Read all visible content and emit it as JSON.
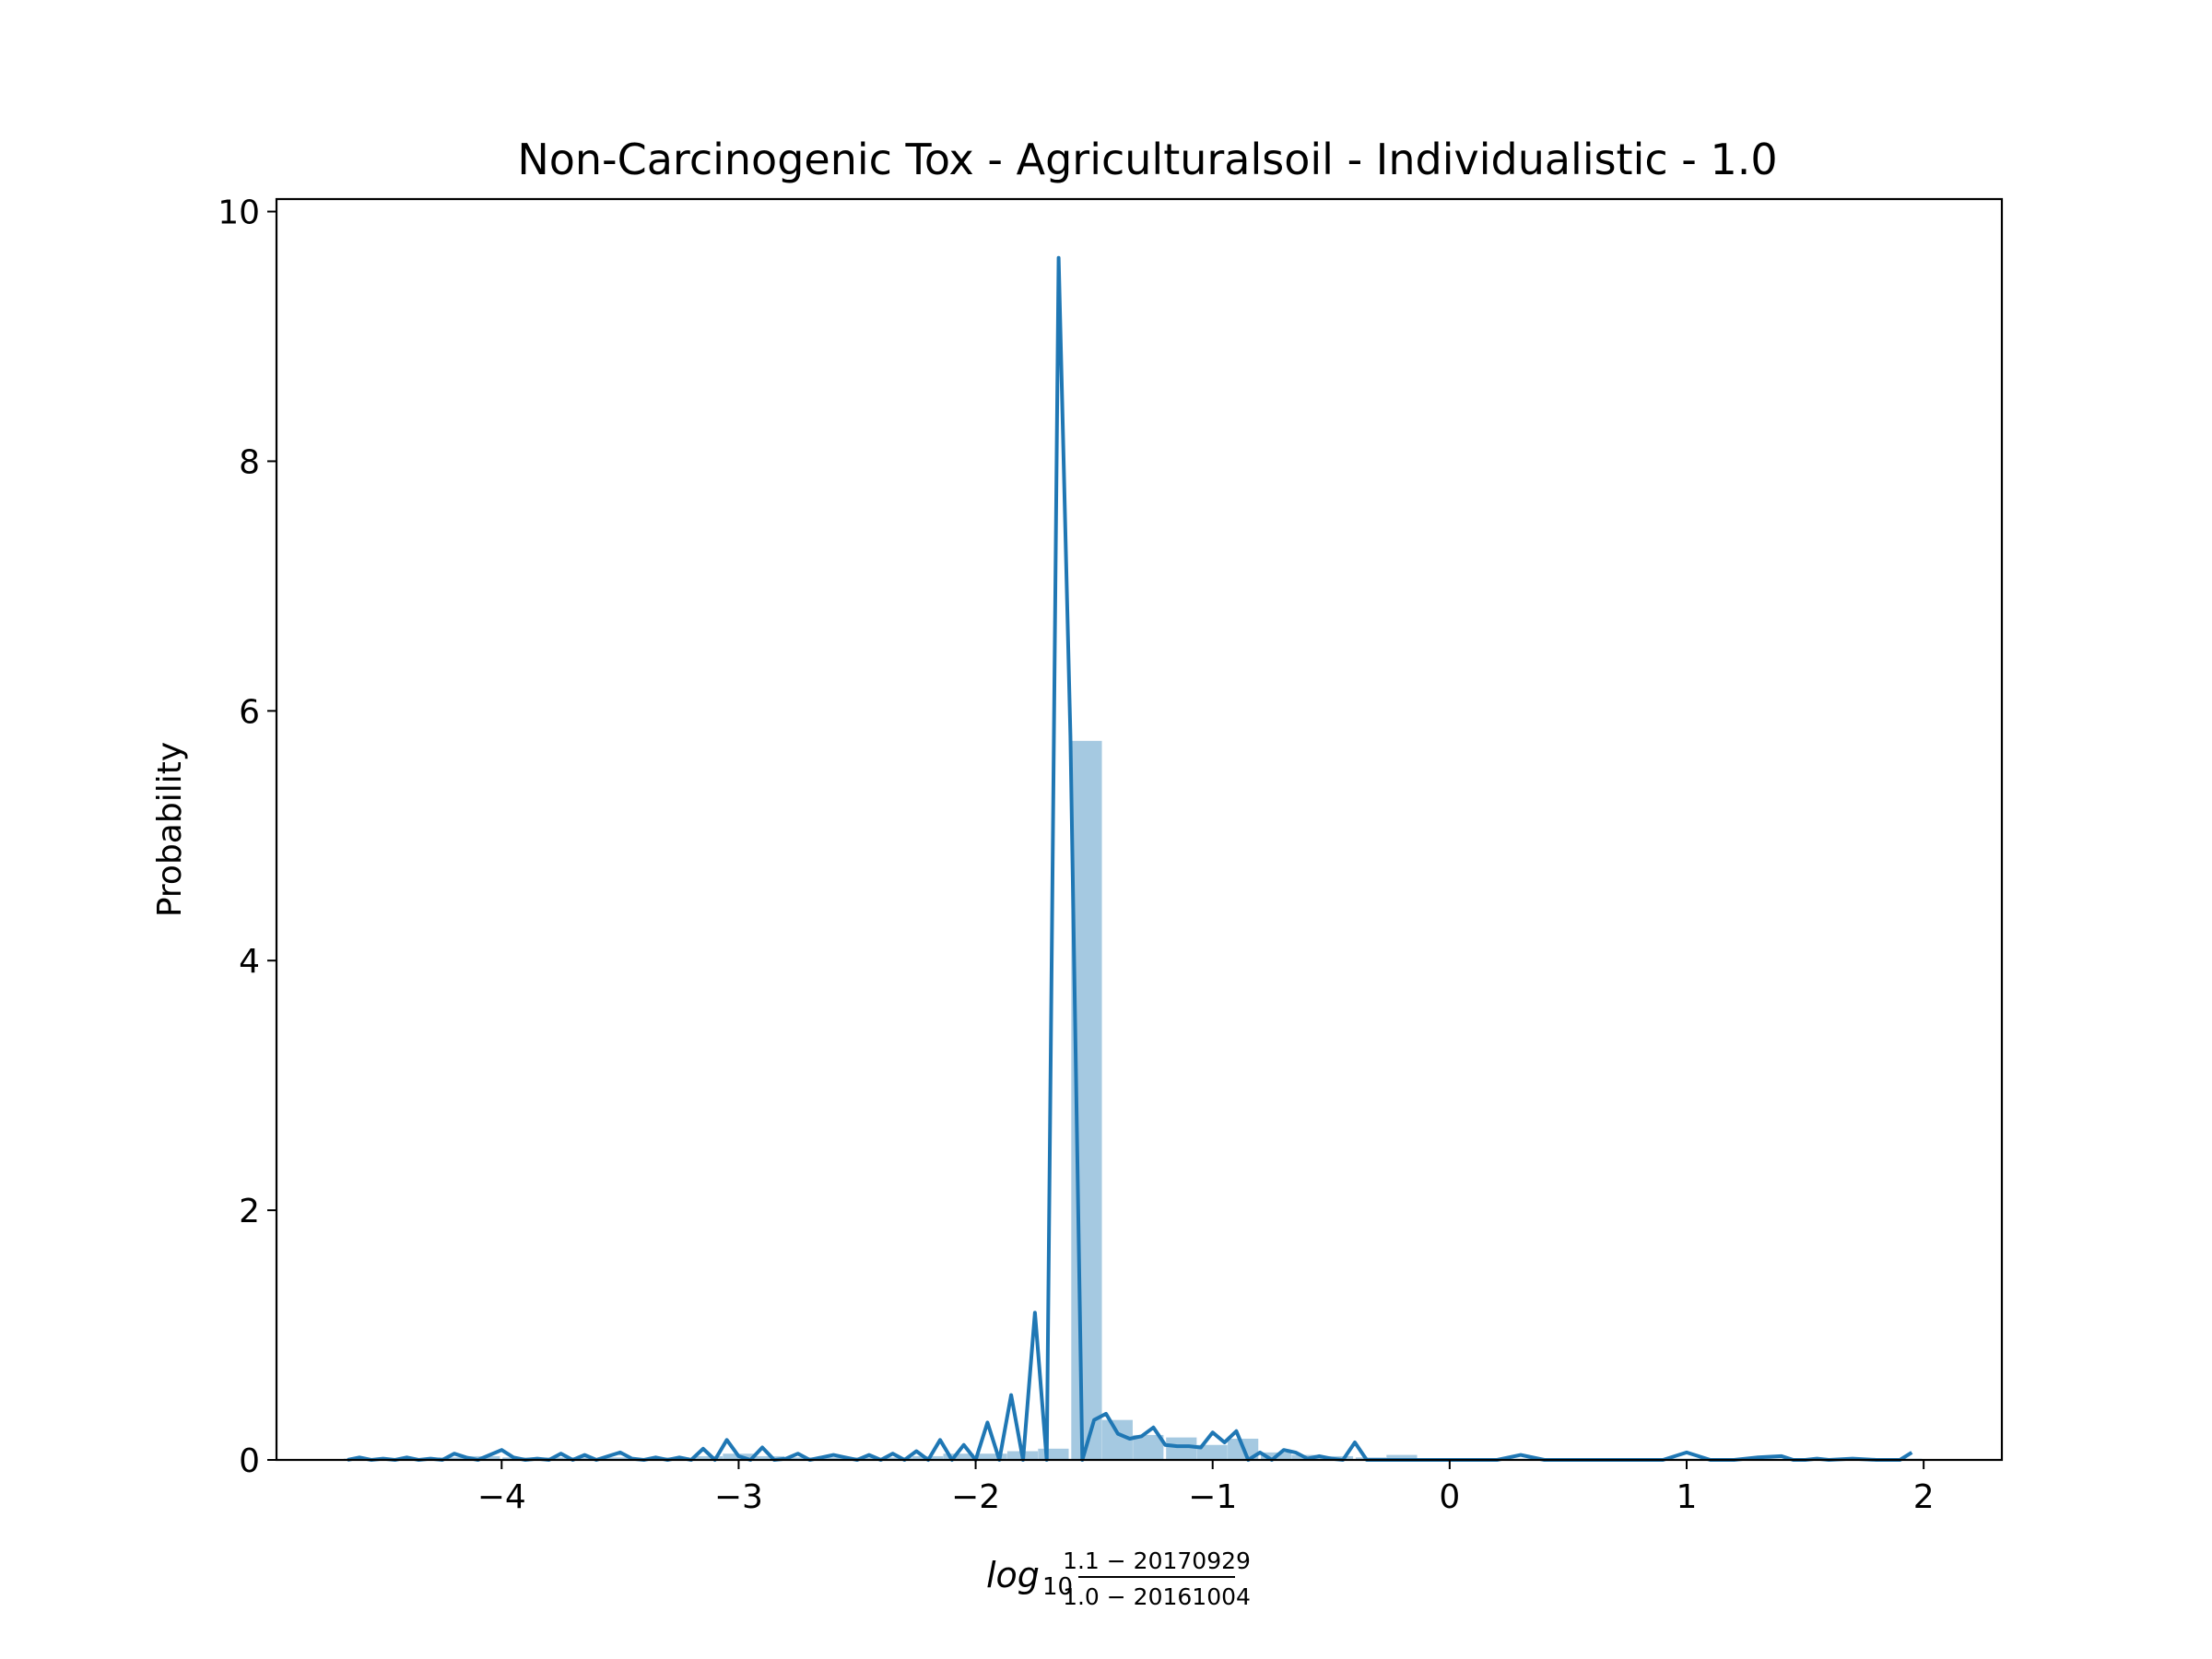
{
  "chart_data": {
    "type": "histogram_with_density_line",
    "title": "Non-Carcinogenic Tox - Agriculturalsoil - Individualistic - 1.0",
    "xlabel": {
      "base": "log",
      "sub": "10",
      "numerator": "1.1 − 20170929",
      "denominator": "1.0 − 20161004"
    },
    "ylabel": "Probability",
    "xlim": [
      -4.95,
      2.33
    ],
    "ylim": [
      0,
      10.1
    ],
    "xticks": [
      -4,
      -3,
      -2,
      -1,
      0,
      1,
      2
    ],
    "xtick_labels": [
      "−4",
      "−3",
      "−2",
      "−1",
      "0",
      "1",
      "2"
    ],
    "yticks": [
      0,
      2,
      4,
      6,
      8,
      10
    ],
    "ytick_labels": [
      "0",
      "2",
      "4",
      "6",
      "8",
      "10"
    ],
    "grid": false,
    "colors": {
      "line": "#1f77b4",
      "bars": "#1f77b4"
    },
    "bars": {
      "bin_width": 0.133,
      "bins": [
        {
          "x": -4.6,
          "y": 0.01
        },
        {
          "x": -4.47,
          "y": 0.01
        },
        {
          "x": -4.33,
          "y": 0.01
        },
        {
          "x": -4.2,
          "y": 0.02
        },
        {
          "x": -4.07,
          "y": 0.03
        },
        {
          "x": -3.93,
          "y": 0.02
        },
        {
          "x": -3.8,
          "y": 0.02
        },
        {
          "x": -3.67,
          "y": 0.02
        },
        {
          "x": -3.53,
          "y": 0.02
        },
        {
          "x": -3.4,
          "y": 0.01
        },
        {
          "x": -3.27,
          "y": 0.02
        },
        {
          "x": -3.13,
          "y": 0.03
        },
        {
          "x": -3.0,
          "y": 0.05
        },
        {
          "x": -2.87,
          "y": 0.03
        },
        {
          "x": -2.73,
          "y": 0.02
        },
        {
          "x": -2.6,
          "y": 0.02
        },
        {
          "x": -2.47,
          "y": 0.02
        },
        {
          "x": -2.33,
          "y": 0.02
        },
        {
          "x": -2.2,
          "y": 0.03
        },
        {
          "x": -2.07,
          "y": 0.05
        },
        {
          "x": -1.93,
          "y": 0.05
        },
        {
          "x": -1.8,
          "y": 0.07
        },
        {
          "x": -1.67,
          "y": 0.09
        },
        {
          "x": -1.53,
          "y": 5.76
        },
        {
          "x": -1.4,
          "y": 0.32
        },
        {
          "x": -1.27,
          "y": 0.2
        },
        {
          "x": -1.13,
          "y": 0.18
        },
        {
          "x": -1.0,
          "y": 0.12
        },
        {
          "x": -0.87,
          "y": 0.17
        },
        {
          "x": -0.73,
          "y": 0.06
        },
        {
          "x": -0.6,
          "y": 0.04
        },
        {
          "x": -0.47,
          "y": 0.03
        },
        {
          "x": -0.33,
          "y": 0.02
        },
        {
          "x": -0.2,
          "y": 0.04
        },
        {
          "x": -0.07,
          "y": 0.01
        },
        {
          "x": 0.07,
          "y": 0.01
        },
        {
          "x": 0.2,
          "y": 0.01
        },
        {
          "x": 0.33,
          "y": 0.01
        },
        {
          "x": 0.47,
          "y": 0.01
        },
        {
          "x": 0.6,
          "y": 0.01
        },
        {
          "x": 0.73,
          "y": 0.01
        },
        {
          "x": 0.87,
          "y": 0.01
        },
        {
          "x": 1.0,
          "y": 0.01
        },
        {
          "x": 1.13,
          "y": 0.01
        },
        {
          "x": 1.27,
          "y": 0.01
        },
        {
          "x": 1.4,
          "y": 0.01
        },
        {
          "x": 1.53,
          "y": 0.01
        },
        {
          "x": 1.67,
          "y": 0.01
        },
        {
          "x": 1.8,
          "y": 0.01
        },
        {
          "x": 1.93,
          "y": 0.01
        }
      ]
    },
    "line": {
      "x": [
        -4.65,
        -4.6,
        -4.55,
        -4.5,
        -4.45,
        -4.4,
        -4.35,
        -4.3,
        -4.25,
        -4.2,
        -4.15,
        -4.1,
        -4.05,
        -4.0,
        -3.95,
        -3.9,
        -3.85,
        -3.8,
        -3.75,
        -3.7,
        -3.65,
        -3.6,
        -3.55,
        -3.5,
        -3.45,
        -3.4,
        -3.35,
        -3.3,
        -3.25,
        -3.2,
        -3.15,
        -3.1,
        -3.05,
        -3.0,
        -2.95,
        -2.9,
        -2.85,
        -2.8,
        -2.75,
        -2.7,
        -2.65,
        -2.6,
        -2.55,
        -2.5,
        -2.45,
        -2.4,
        -2.35,
        -2.3,
        -2.25,
        -2.2,
        -2.15,
        -2.1,
        -2.05,
        -2.0,
        -1.95,
        -1.9,
        -1.85,
        -1.8,
        -1.75,
        -1.7,
        -1.65,
        -1.6,
        -1.55,
        -1.5,
        -1.45,
        -1.4,
        -1.35,
        -1.3,
        -1.25,
        -1.2,
        -1.15,
        -1.1,
        -1.05,
        -1.0,
        -0.95,
        -0.9,
        -0.85,
        -0.8,
        -0.75,
        -0.7,
        -0.65,
        -0.6,
        -0.55,
        -0.5,
        -0.45,
        -0.4,
        -0.35,
        -0.3,
        -0.25,
        -0.2,
        -0.15,
        -0.1,
        -0.05,
        0.0,
        0.1,
        0.2,
        0.3,
        0.4,
        0.5,
        0.6,
        0.7,
        0.8,
        0.9,
        1.0,
        1.1,
        1.15,
        1.2,
        1.3,
        1.4,
        1.45,
        1.5,
        1.55,
        1.6,
        1.7,
        1.8,
        1.9,
        1.95,
        2.0
      ],
      "y": [
        0.0,
        0.02,
        0.0,
        0.01,
        0.0,
        0.02,
        0.0,
        0.01,
        0.0,
        0.05,
        0.02,
        0.0,
        0.04,
        0.08,
        0.02,
        0.0,
        0.01,
        0.0,
        0.05,
        0.0,
        0.04,
        0.0,
        0.03,
        0.06,
        0.01,
        0.0,
        0.02,
        0.0,
        0.02,
        0.0,
        0.09,
        0.0,
        0.16,
        0.03,
        0.0,
        0.1,
        0.0,
        0.01,
        0.05,
        0.0,
        0.02,
        0.04,
        0.02,
        0.0,
        0.04,
        0.0,
        0.05,
        0.0,
        0.07,
        0.0,
        0.16,
        0.0,
        0.12,
        0.0,
        0.3,
        0.0,
        0.52,
        0.0,
        1.18,
        0.0,
        9.63,
        5.8,
        0.0,
        0.32,
        0.37,
        0.21,
        0.17,
        0.19,
        0.26,
        0.12,
        0.11,
        0.11,
        0.1,
        0.22,
        0.14,
        0.23,
        0.0,
        0.06,
        0.0,
        0.08,
        0.06,
        0.01,
        0.03,
        0.01,
        0.0,
        0.14,
        0.0,
        0.0,
        0.0,
        0.0,
        0.0,
        0.0,
        0.0,
        0.0,
        0.0,
        0.0,
        0.04,
        0.0,
        0.0,
        0.0,
        0.0,
        0.0,
        0.0,
        0.06,
        0.0,
        0.0,
        0.0,
        0.02,
        0.03,
        0.0,
        0.0,
        0.01,
        0.0,
        0.01,
        0.0,
        0.0,
        0.06
      ]
    }
  }
}
